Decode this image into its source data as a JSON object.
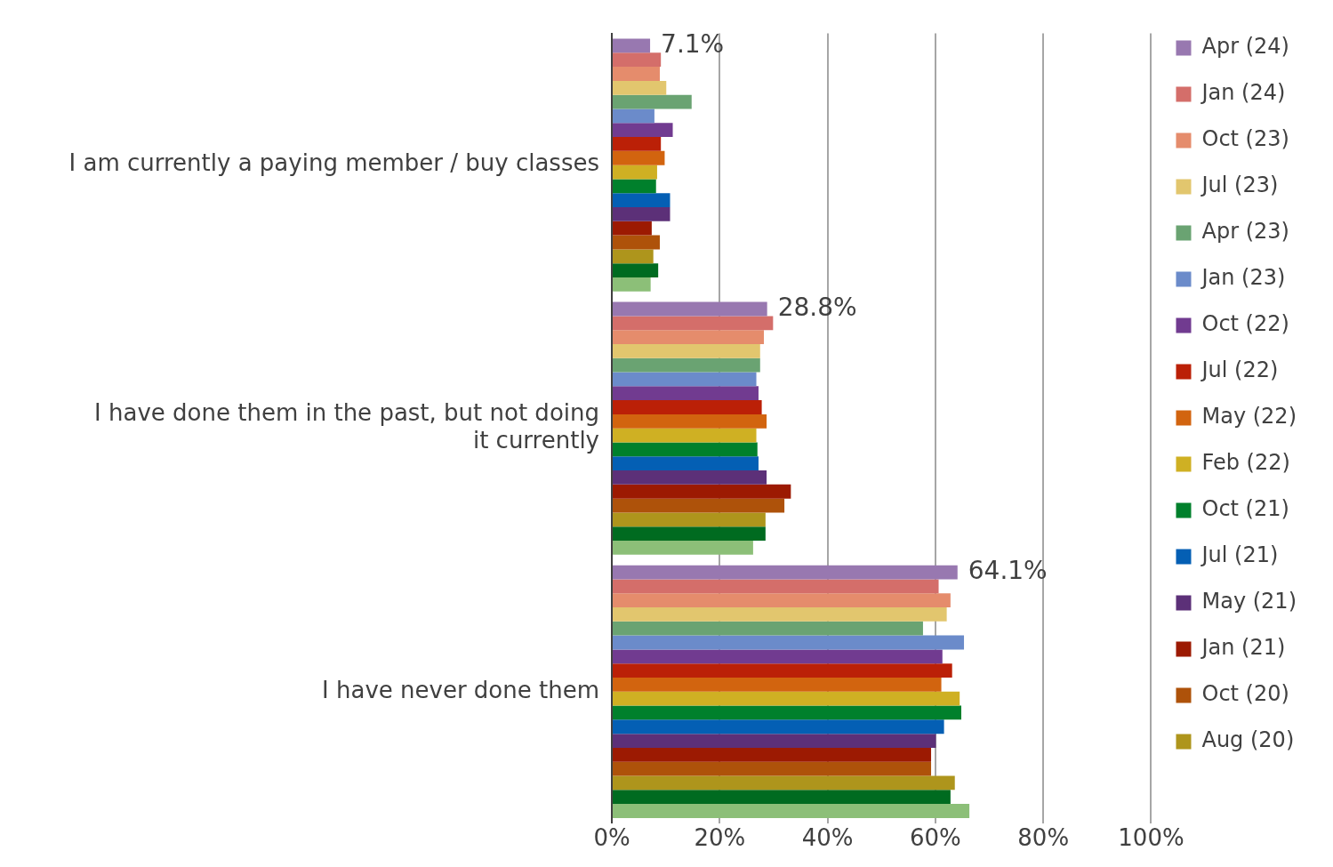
{
  "chart_data": {
    "type": "bar",
    "orientation": "horizontal",
    "categories": [
      "I am currently a paying member / buy classes",
      "I have done them in the past, but not doing it currently",
      "I have never done them"
    ],
    "xlim": [
      0,
      100
    ],
    "xticks": [
      {
        "value": 0,
        "label": "0%"
      },
      {
        "value": 20,
        "label": "20%"
      },
      {
        "value": 40,
        "label": "40%"
      },
      {
        "value": 60,
        "label": "60%"
      },
      {
        "value": 80,
        "label": "80%"
      },
      {
        "value": 100,
        "label": "100%"
      }
    ],
    "grid": "x",
    "legend": "right",
    "series": [
      {
        "name": "Apr (24)",
        "color": "#9878b0",
        "values": [
          7.1,
          28.8,
          64.1
        ],
        "value_labels": [
          "7.1%",
          "28.8%",
          "64.1%"
        ]
      },
      {
        "name": "Jan (24)",
        "color": "#d46e6a",
        "values": [
          9.1,
          29.9,
          60.6
        ]
      },
      {
        "name": "Oct (23)",
        "color": "#e58c6c",
        "values": [
          8.9,
          28.2,
          62.8
        ]
      },
      {
        "name": "Jul (23)",
        "color": "#e2c66e",
        "values": [
          10.1,
          27.5,
          62.1
        ]
      },
      {
        "name": "Apr (23)",
        "color": "#6aa372",
        "values": [
          14.8,
          27.5,
          57.7
        ]
      },
      {
        "name": "Jan (23)",
        "color": "#6b8bca",
        "values": [
          7.9,
          26.8,
          65.3
        ]
      },
      {
        "name": "Oct (22)",
        "color": "#713b90",
        "values": [
          11.3,
          27.2,
          61.3
        ]
      },
      {
        "name": "Jul (22)",
        "color": "#bb2007",
        "values": [
          9.1,
          27.8,
          63.1
        ]
      },
      {
        "name": "May (22)",
        "color": "#d2640f",
        "values": [
          9.8,
          28.7,
          61.1
        ]
      },
      {
        "name": "Feb (22)",
        "color": "#cfb023",
        "values": [
          8.4,
          26.8,
          64.5
        ]
      },
      {
        "name": "Oct (21)",
        "color": "#00802c",
        "values": [
          8.2,
          27.0,
          64.8
        ]
      },
      {
        "name": "Jul (21)",
        "color": "#045fb4",
        "values": [
          10.8,
          27.2,
          61.6
        ]
      },
      {
        "name": "May (21)",
        "color": "#5c3078",
        "values": [
          10.8,
          28.7,
          60.1
        ]
      },
      {
        "name": "Jan (21)",
        "color": "#9c1a02",
        "values": [
          7.4,
          33.2,
          59.2
        ]
      },
      {
        "name": "Oct (20)",
        "color": "#ae520a",
        "values": [
          8.9,
          32.0,
          59.2
        ]
      },
      {
        "name": "Aug (20)",
        "color": "#ae951c",
        "values": [
          7.7,
          28.5,
          63.6
        ]
      },
      {
        "color": "#006b20",
        "values": [
          8.6,
          28.5,
          62.8
        ]
      },
      {
        "color": "#8cbf78",
        "values": [
          7.2,
          26.2,
          66.3
        ]
      }
    ]
  }
}
